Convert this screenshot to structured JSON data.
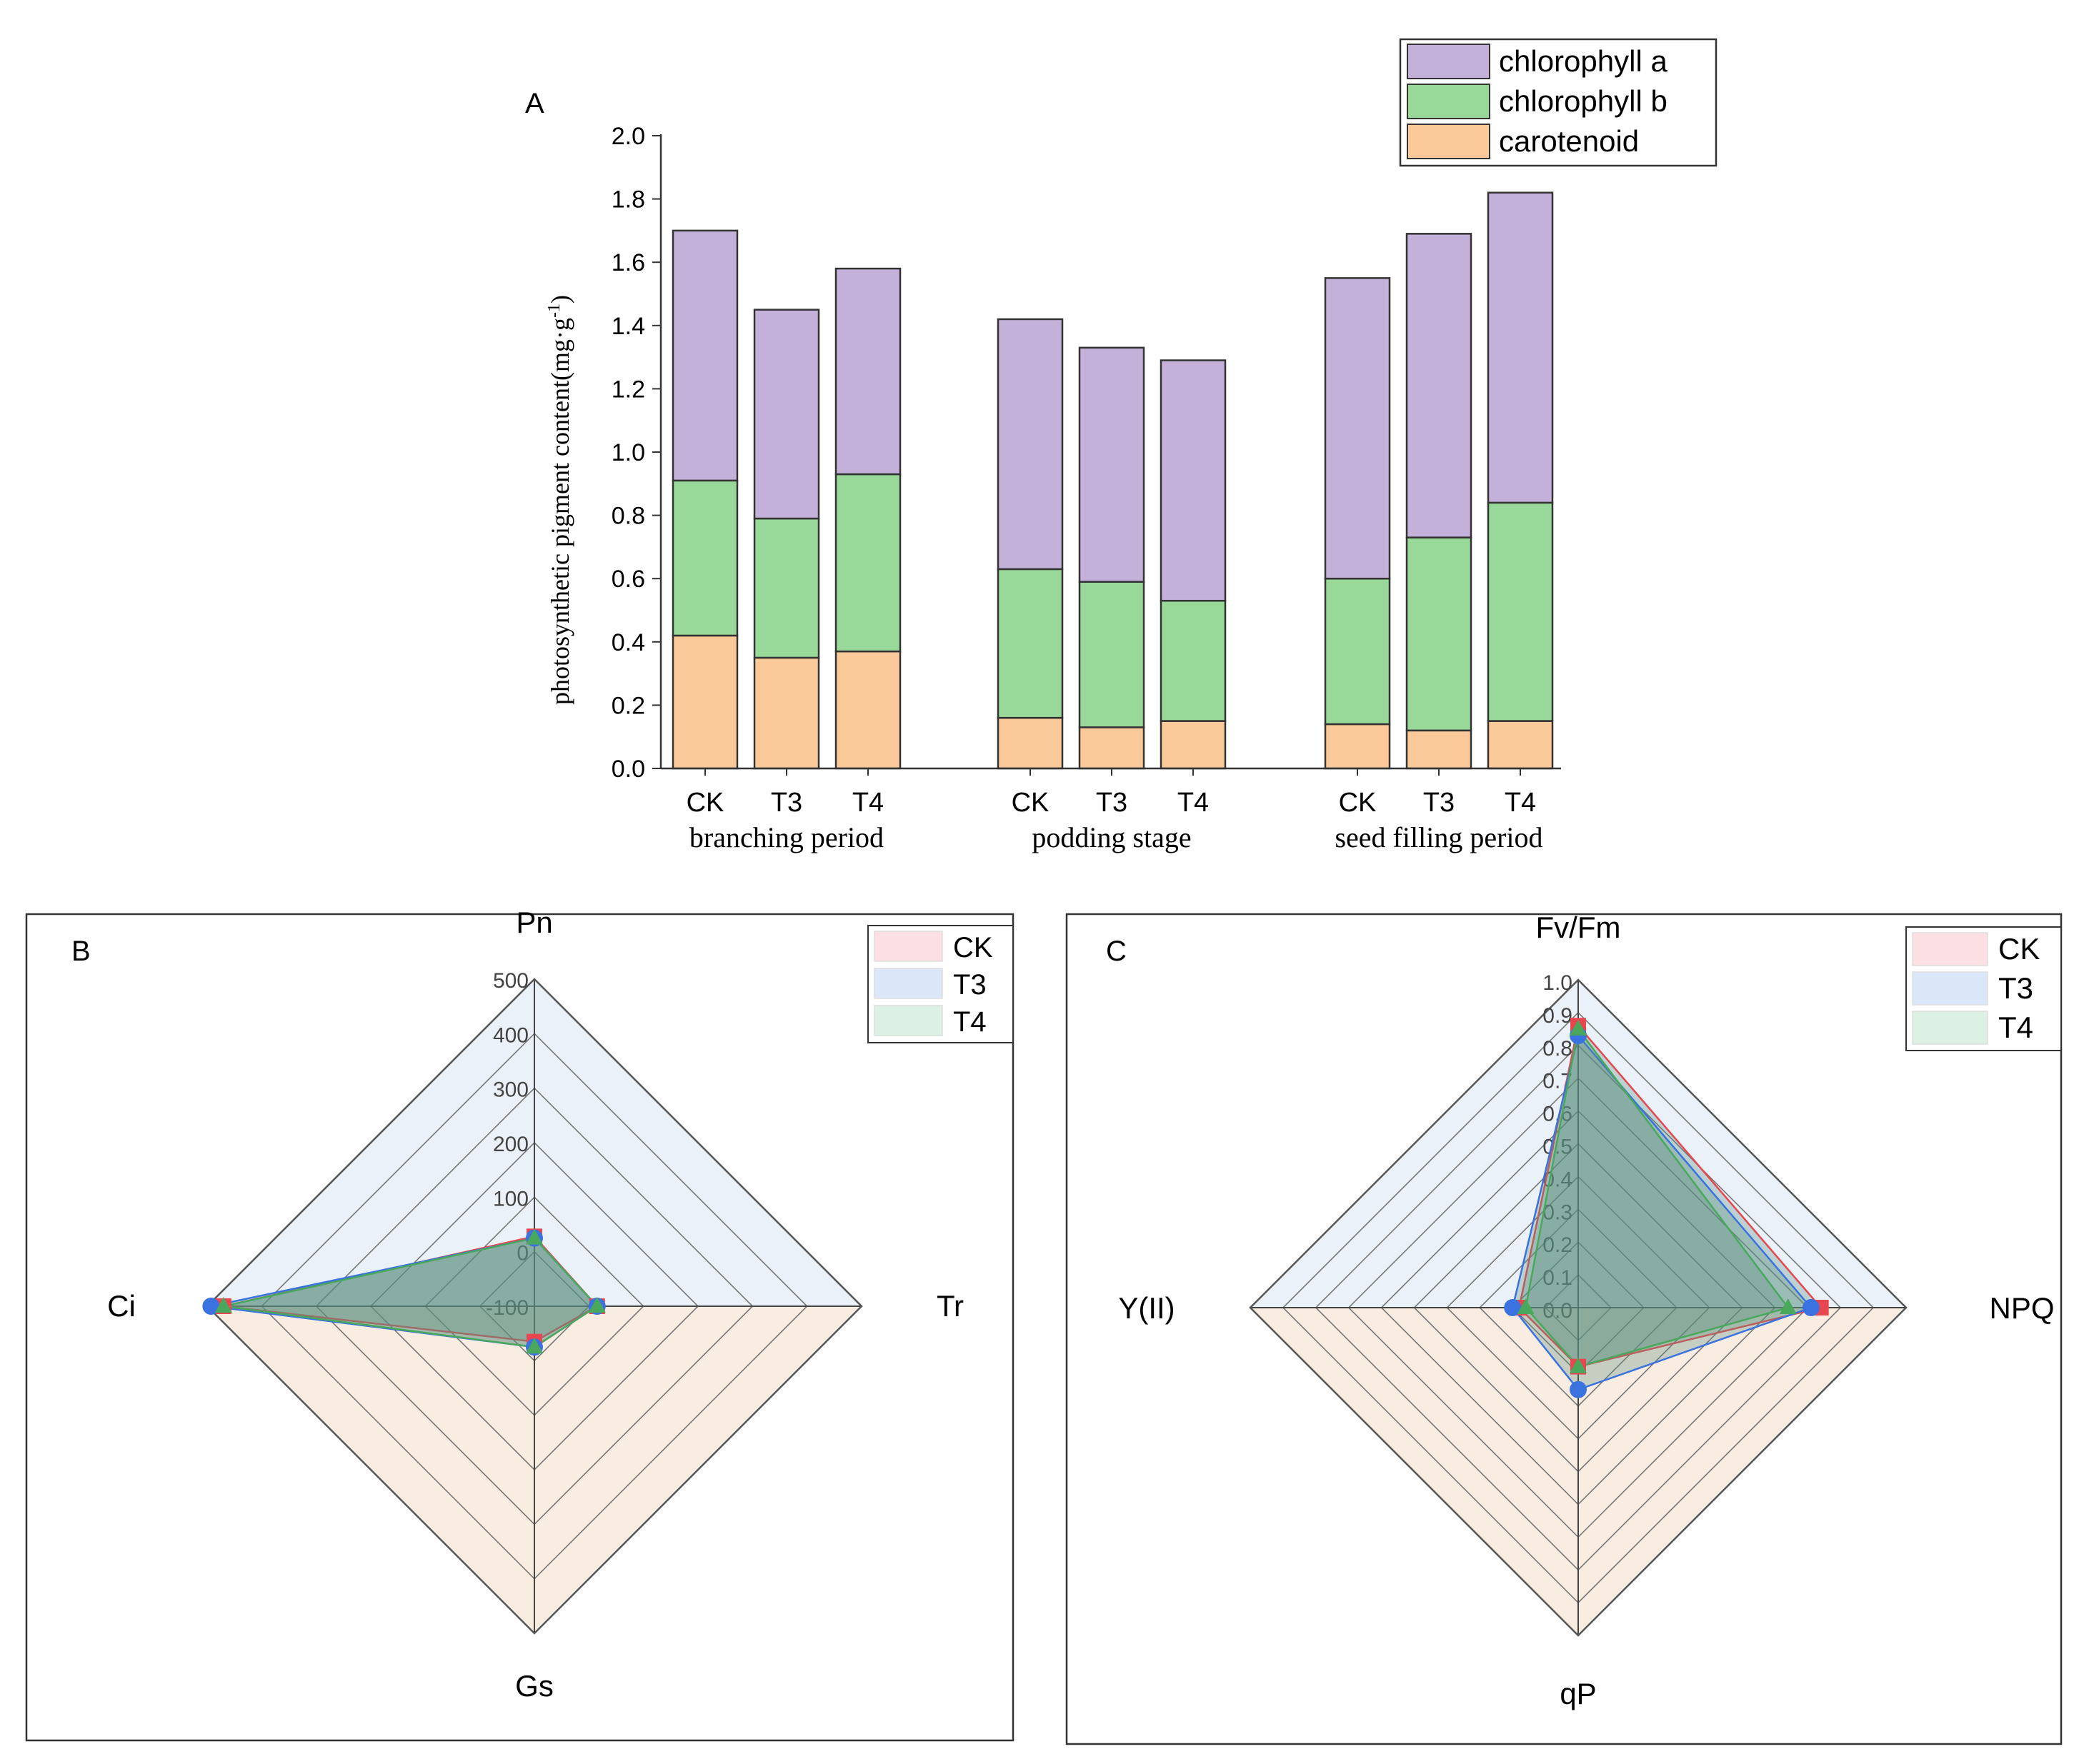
{
  "colors": {
    "chlorophyll_a": "#c4b1d9",
    "chlorophyll_b": "#98d99a",
    "carotenoid": "#f9c99a",
    "CK": "#e8474f",
    "T3": "#3a72e0",
    "T4": "#4aa85c",
    "CK_fill": "#fbdfe2",
    "T3_fill": "#dbe6f8",
    "T4_fill": "#dcf1e3"
  },
  "chart_data": [
    {
      "type": "bar",
      "stacked": true,
      "panel_label": "A",
      "ylabel": "photosynthetic pigment content(mg·g",
      "ylabel_sup": "-1",
      "ylabel_close": ")",
      "ylim": [
        0,
        2.0
      ],
      "yticks": [
        "0.0",
        "0.2",
        "0.4",
        "0.6",
        "0.8",
        "1.0",
        "1.2",
        "1.4",
        "1.6",
        "1.8",
        "2.0"
      ],
      "groups": [
        {
          "label": "branching period",
          "categories": [
            "CK",
            "T3",
            "T4"
          ]
        },
        {
          "label": "podding stage",
          "categories": [
            "CK",
            "T3",
            "T4"
          ]
        },
        {
          "label": "seed filling period",
          "categories": [
            "CK",
            "T3",
            "T4"
          ]
        }
      ],
      "legend": [
        "chlorophyll a",
        "chlorophyll b",
        "carotenoid"
      ],
      "series": [
        {
          "name": "carotenoid",
          "values": [
            0.42,
            0.35,
            0.37,
            0.16,
            0.13,
            0.15,
            0.14,
            0.12,
            0.15
          ]
        },
        {
          "name": "chlorophyll b",
          "values": [
            0.49,
            0.44,
            0.56,
            0.47,
            0.46,
            0.38,
            0.46,
            0.61,
            0.69
          ]
        },
        {
          "name": "chlorophyll a",
          "values": [
            0.79,
            0.66,
            0.65,
            0.79,
            0.74,
            0.76,
            0.95,
            0.96,
            0.98
          ]
        }
      ]
    },
    {
      "type": "radar",
      "panel_label": "B",
      "axes": [
        "Pn",
        "Tr",
        "Gs",
        "Ci"
      ],
      "range": [
        -100,
        500
      ],
      "tick_labels": [
        "-100",
        "0",
        "100",
        "200",
        "300",
        "400",
        "500"
      ],
      "legend": [
        "CK",
        "T3",
        "T4"
      ],
      "series": [
        {
          "name": "CK",
          "values": [
            28,
            15,
            -35,
            470
          ]
        },
        {
          "name": "T3",
          "values": [
            25,
            15,
            -25,
            493
          ]
        },
        {
          "name": "T4",
          "values": [
            25,
            15,
            -25,
            470
          ]
        }
      ]
    },
    {
      "type": "radar",
      "panel_label": "C",
      "axes": [
        "Fv/Fm",
        "NPQ",
        "qP",
        "Y(II)"
      ],
      "range": [
        0,
        1.0
      ],
      "tick_labels": [
        "0.0",
        "0.1",
        "0.2",
        "0.3",
        "0.4",
        "0.5",
        "0.6",
        "0.7",
        "0.8",
        "0.9",
        "1.0"
      ],
      "legend": [
        "CK",
        "T3",
        "T4"
      ],
      "series": [
        {
          "name": "CK",
          "values": [
            0.86,
            0.74,
            0.18,
            0.18
          ]
        },
        {
          "name": "T3",
          "values": [
            0.83,
            0.71,
            0.25,
            0.2
          ]
        },
        {
          "name": "T4",
          "values": [
            0.85,
            0.64,
            0.18,
            0.16
          ]
        }
      ]
    }
  ]
}
